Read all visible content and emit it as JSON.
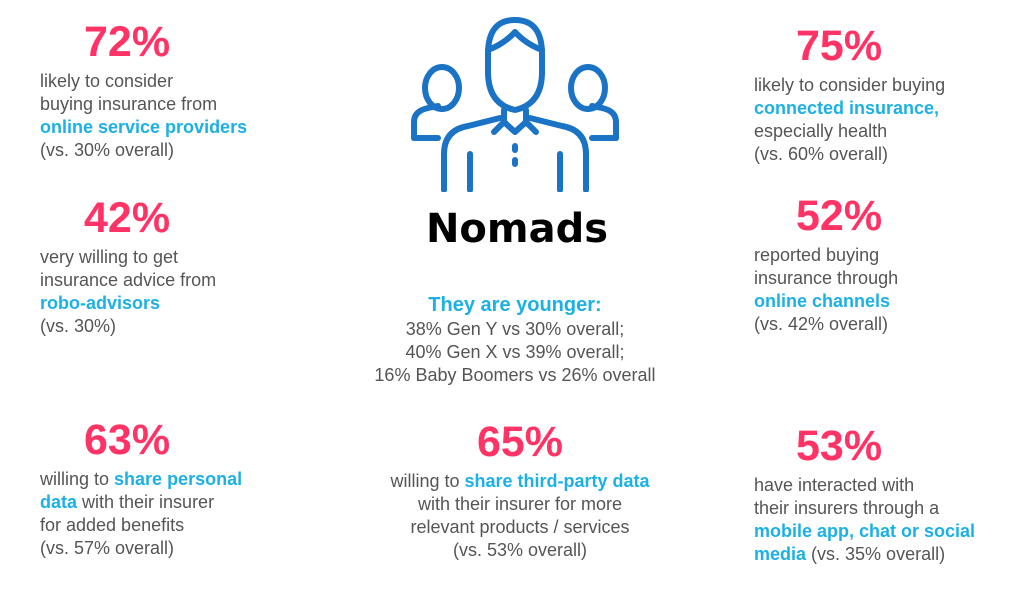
{
  "title": "Nomads",
  "colors": {
    "accent_pink": "#ff3366",
    "accent_blue": "#1cb1e6",
    "text_gray": "#555555",
    "icon_blue": "#1a73c5"
  },
  "icon": "people-group-icon",
  "younger": {
    "heading": "They are younger:",
    "lines": [
      "38% Gen Y vs 30% overall;",
      "40% Gen X vs 39% overall;",
      "16% Baby Boomers vs 26% overall"
    ]
  },
  "stats": {
    "s72": {
      "pct": "72%",
      "l1": "likely to consider",
      "l2": "buying insurance from",
      "hl": "online service providers",
      "l4": "(vs. 30% overall)"
    },
    "s75": {
      "pct": "75%",
      "l1": "likely to consider buying",
      "hl": "connected insurance,",
      "l3": "especially health",
      "l4": "(vs. 60% overall)"
    },
    "s42": {
      "pct": "42%",
      "l1": "very willing to get",
      "l2": "insurance advice from",
      "hl": "robo-advisors",
      "l4": "(vs. 30%)"
    },
    "s52": {
      "pct": "52%",
      "l1": "reported buying",
      "l2": "insurance through",
      "hl": "online channels",
      "l4": "(vs. 42% overall)"
    },
    "s63": {
      "pct": "63%",
      "l1a": "willing to ",
      "hl1": "share personal",
      "hl2": "data",
      "l2b": " with their insurer",
      "l3": "for added benefits",
      "l4": "(vs. 57% overall)"
    },
    "s65": {
      "pct": "65%",
      "l1a": "willing to ",
      "hl": "share third-party data",
      "l2": "with their insurer for more",
      "l3": "relevant products / services",
      "l4": "(vs. 53% overall)"
    },
    "s53": {
      "pct": "53%",
      "l1": "have interacted with",
      "l2": "their insurers through a",
      "hl1": "mobile app, chat or social",
      "hl2": "media",
      "l4b": " (vs. 35% overall)"
    }
  }
}
